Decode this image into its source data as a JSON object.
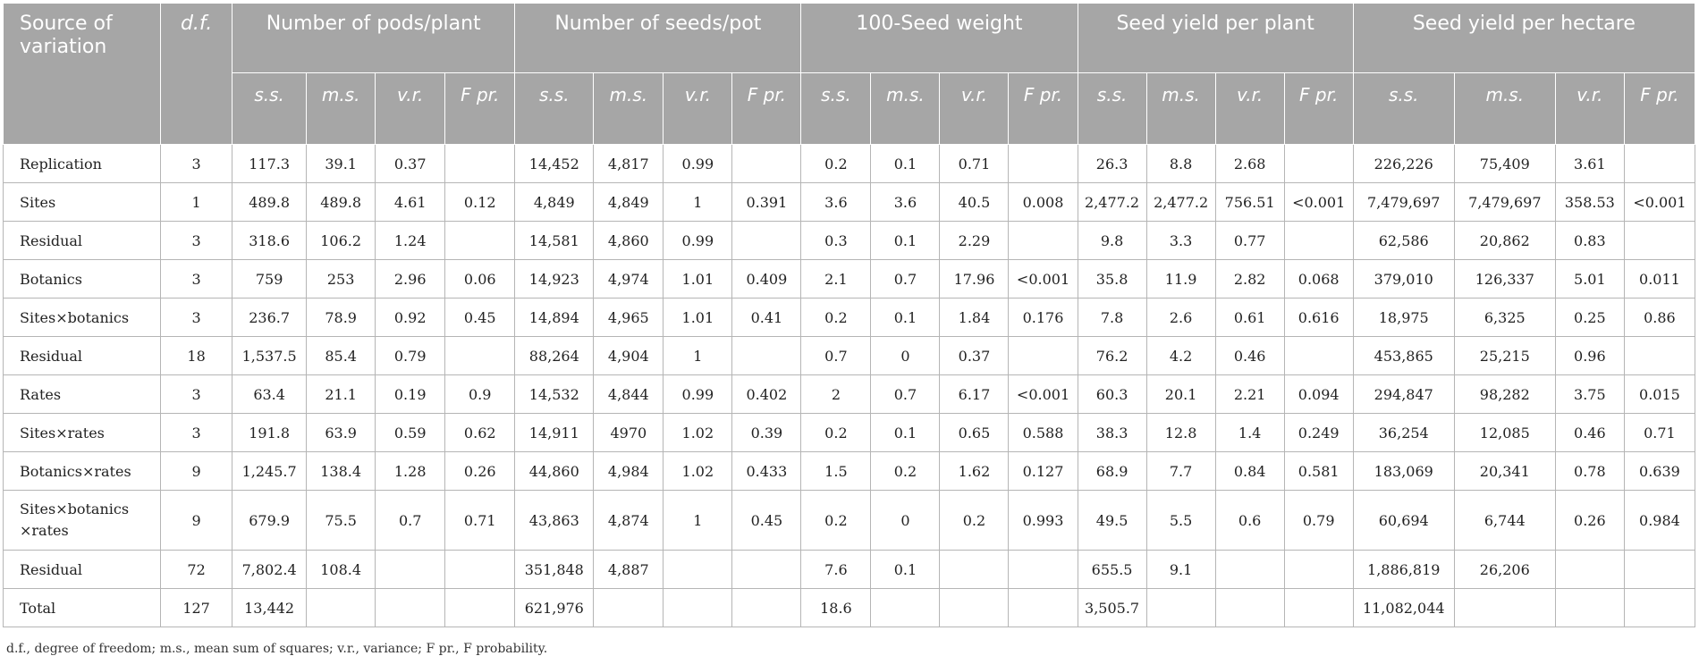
{
  "header": {
    "source": "Source of variation",
    "df": "d.f.",
    "groups": [
      "Number of pods/plant",
      "Number of seeds/pot",
      "100-Seed weight",
      "Seed yield per plant",
      "Seed yield per hectare"
    ],
    "subheaders": [
      "s.s.",
      "m.s.",
      "v.r.",
      "F pr."
    ]
  },
  "rows": [
    {
      "source": "Replication",
      "df": "3",
      "cells": [
        "117.3",
        "39.1",
        "0.37",
        "",
        "14,452",
        "4,817",
        "0.99",
        "",
        "0.2",
        "0.1",
        "0.71",
        "",
        "26.3",
        "8.8",
        "2.68",
        "",
        "226,226",
        "75,409",
        "3.61",
        ""
      ]
    },
    {
      "source": "Sites",
      "df": "1",
      "cells": [
        "489.8",
        "489.8",
        "4.61",
        "0.12",
        "4,849",
        "4,849",
        "1",
        "0.391",
        "3.6",
        "3.6",
        "40.5",
        "0.008",
        "2,477.2",
        "2,477.2",
        "756.51",
        "<0.001",
        "7,479,697",
        "7,479,697",
        "358.53",
        "<0.001"
      ]
    },
    {
      "source": "Residual",
      "df": "3",
      "cells": [
        "318.6",
        "106.2",
        "1.24",
        "",
        "14,581",
        "4,860",
        "0.99",
        "",
        "0.3",
        "0.1",
        "2.29",
        "",
        "9.8",
        "3.3",
        "0.77",
        "",
        "62,586",
        "20,862",
        "0.83",
        ""
      ]
    },
    {
      "source": "Botanics",
      "df": "3",
      "cells": [
        "759",
        "253",
        "2.96",
        "0.06",
        "14,923",
        "4,974",
        "1.01",
        "0.409",
        "2.1",
        "0.7",
        "17.96",
        "<0.001",
        "35.8",
        "11.9",
        "2.82",
        "0.068",
        "379,010",
        "126,337",
        "5.01",
        "0.011"
      ]
    },
    {
      "source": "Sites×botanics",
      "df": "3",
      "cells": [
        "236.7",
        "78.9",
        "0.92",
        "0.45",
        "14,894",
        "4,965",
        "1.01",
        "0.41",
        "0.2",
        "0.1",
        "1.84",
        "0.176",
        "7.8",
        "2.6",
        "0.61",
        "0.616",
        "18,975",
        "6,325",
        "0.25",
        "0.86"
      ]
    },
    {
      "source": "Residual",
      "df": "18",
      "cells": [
        "1,537.5",
        "85.4",
        "0.79",
        "",
        "88,264",
        "4,904",
        "1",
        "",
        "0.7",
        "0",
        "0.37",
        "",
        "76.2",
        "4.2",
        "0.46",
        "",
        "453,865",
        "25,215",
        "0.96",
        ""
      ]
    },
    {
      "source": "Rates",
      "df": "3",
      "cells": [
        "63.4",
        "21.1",
        "0.19",
        "0.9",
        "14,532",
        "4,844",
        "0.99",
        "0.402",
        "2",
        "0.7",
        "6.17",
        "<0.001",
        "60.3",
        "20.1",
        "2.21",
        "0.094",
        "294,847",
        "98,282",
        "3.75",
        "0.015"
      ]
    },
    {
      "source": "Sites×rates",
      "df": "3",
      "cells": [
        "191.8",
        "63.9",
        "0.59",
        "0.62",
        "14,911",
        "4970",
        "1.02",
        "0.39",
        "0.2",
        "0.1",
        "0.65",
        "0.588",
        "38.3",
        "12.8",
        "1.4",
        "0.249",
        "36,254",
        "12,085",
        "0.46",
        "0.71"
      ]
    },
    {
      "source": "Botanics×rates",
      "df": "9",
      "cells": [
        "1,245.7",
        "138.4",
        "1.28",
        "0.26",
        "44,860",
        "4,984",
        "1.02",
        "0.433",
        "1.5",
        "0.2",
        "1.62",
        "0.127",
        "68.9",
        "7.7",
        "0.84",
        "0.581",
        "183,069",
        "20,341",
        "0.78",
        "0.639"
      ]
    },
    {
      "source": "Sites×botanics ×rates",
      "df": "9",
      "tall": true,
      "cells": [
        "679.9",
        "75.5",
        "0.7",
        "0.71",
        "43,863",
        "4,874",
        "1",
        "0.45",
        "0.2",
        "0",
        "0.2",
        "0.993",
        "49.5",
        "5.5",
        "0.6",
        "0.79",
        "60,694",
        "6,744",
        "0.26",
        "0.984"
      ]
    },
    {
      "source": "Residual",
      "df": "72",
      "cells": [
        "7,802.4",
        "108.4",
        "",
        "",
        "351,848",
        "4,887",
        "",
        "",
        "7.6",
        "0.1",
        "",
        "",
        "655.5",
        "9.1",
        "",
        "",
        "1,886,819",
        "26,206",
        "",
        ""
      ]
    },
    {
      "source": "Total",
      "df": "127",
      "cells": [
        "13,442",
        "",
        "",
        "",
        "621,976",
        "",
        "",
        "",
        "18.6",
        "",
        "",
        "",
        "3,505.7",
        "",
        "",
        "",
        "11,082,044",
        "",
        "",
        ""
      ]
    }
  ],
  "footnote": "d.f., degree of freedom; m.s., mean sum of squares; v.r., variance; F pr., F probability."
}
